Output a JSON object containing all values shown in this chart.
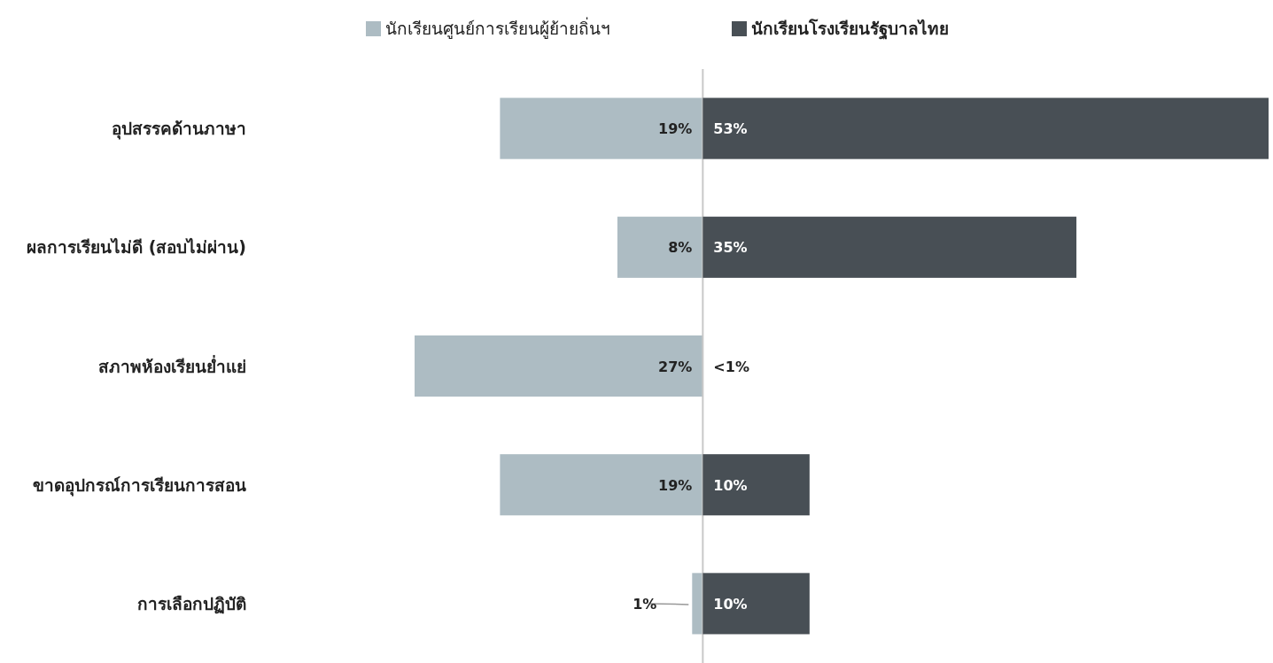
{
  "chart_data": [
    {
      "type": "bar",
      "orientation": "horizontal",
      "legend": "top",
      "tick_labels": "y",
      "xlim": [
        27,
        0
      ],
      "categories": [
        "อุปสรรคด้านภาษา",
        "ผลการเรียนไม่ดี (สอบไม่ผ่าน)",
        "สภาพห้องเรียนย่ำแย่",
        "ขาดอุปกรณ์การเรียนการสอน",
        "การเลือกปฏิบัติ"
      ],
      "series": [
        {
          "name": "นักเรียนศูนย์การเรียนผู้ย้ายถิ่นฯ",
          "color": "#adbcc3",
          "values": [
            19,
            8,
            27,
            19,
            1
          ],
          "value_labels": [
            "19%",
            "8%",
            "27%",
            "19%",
            "1%"
          ]
        }
      ]
    },
    {
      "type": "bar",
      "orientation": "horizontal",
      "legend": "top",
      "tick_labels": false,
      "xlim": [
        0,
        53
      ],
      "categories": [
        "อุปสรรคด้านภาษา",
        "ผลการเรียนไม่ดี (สอบไม่ผ่าน)",
        "สภาพห้องเรียนย่ำแย่",
        "ขาดอุปกรณ์การเรียนการสอน",
        "การเลือกปฏิบัติ"
      ],
      "series": [
        {
          "name": "นักเรียนโรงเรียนรัฐบาลไทย",
          "color": "#484f55",
          "values": [
            53,
            35,
            null,
            10,
            10
          ],
          "value_labels": [
            "53%",
            "35%",
            "<1%",
            "10%",
            "10%"
          ]
        }
      ]
    }
  ]
}
